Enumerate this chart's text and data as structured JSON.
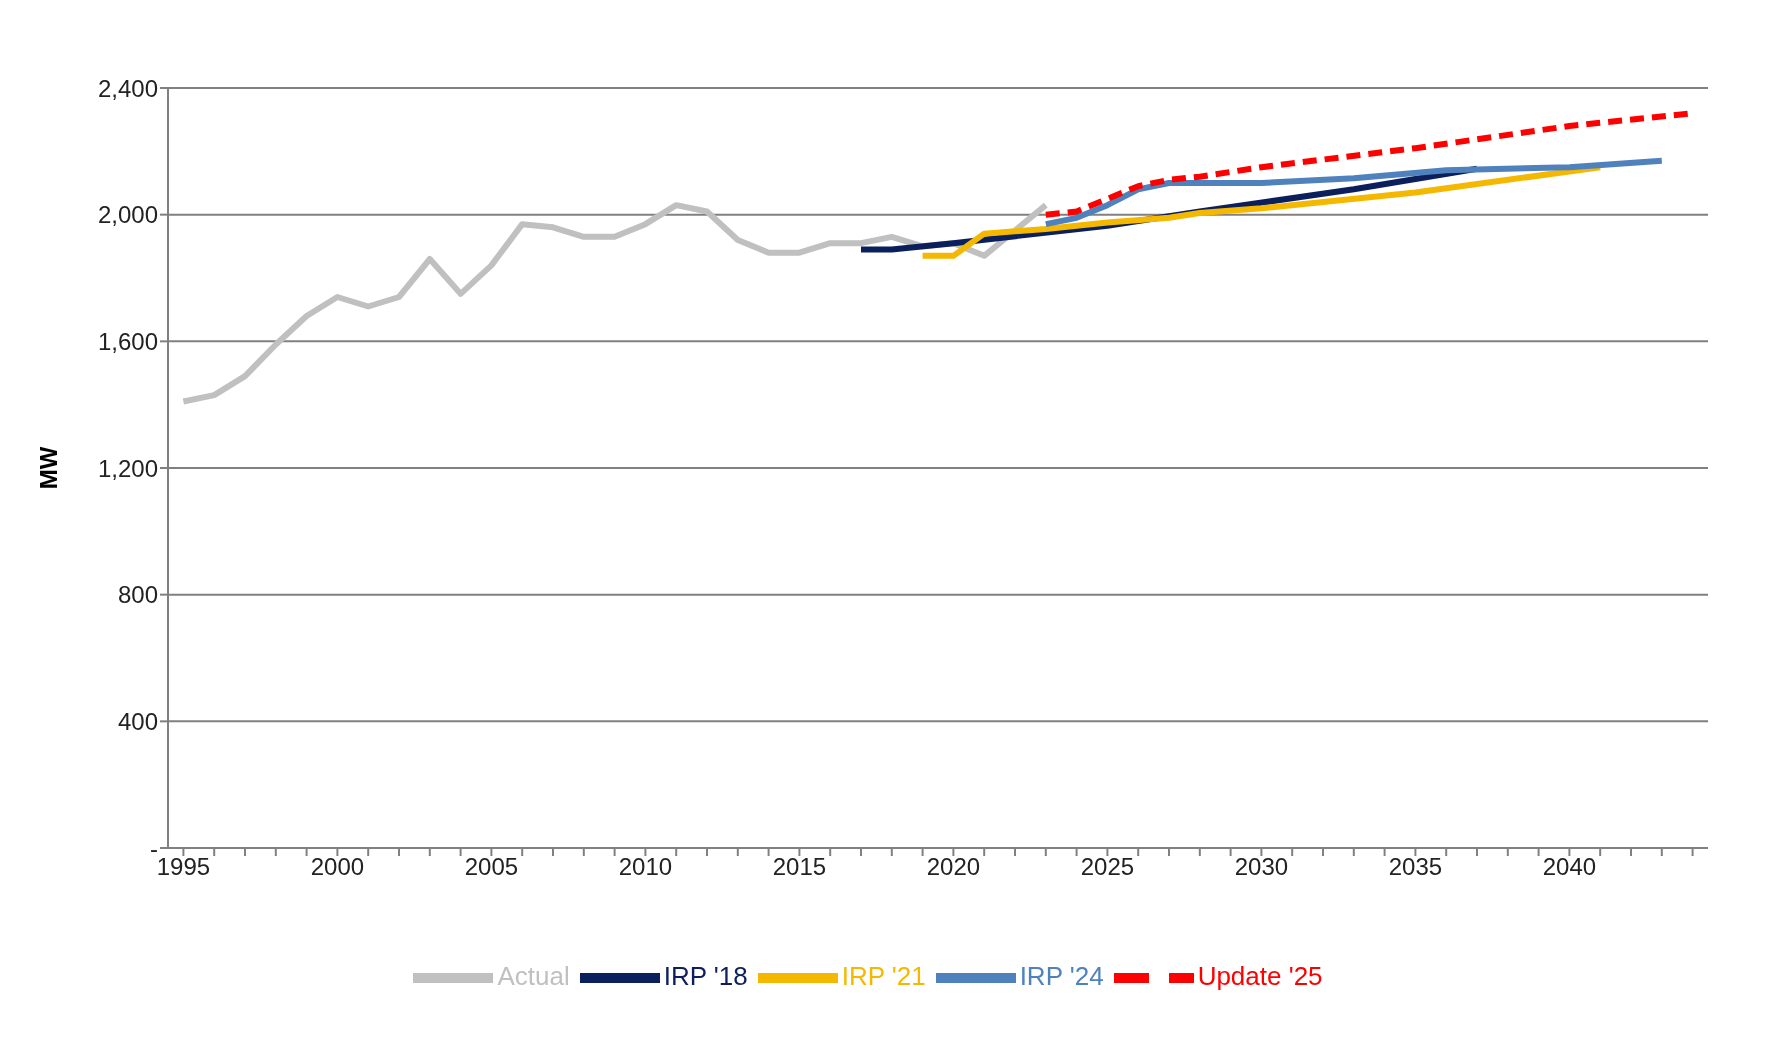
{
  "chart_data": {
    "type": "line",
    "ylabel": "MW",
    "xlim": [
      1994.5,
      2044.5
    ],
    "xticks": [
      1995,
      {
        "value": 1996,
        "label": null
      },
      {
        "value": 1997,
        "label": null
      },
      {
        "value": 1998,
        "label": null
      },
      {
        "value": 1999,
        "label": null
      },
      2000,
      {
        "value": 2001,
        "label": null
      },
      {
        "value": 2002,
        "label": null
      },
      {
        "value": 2003,
        "label": null
      },
      {
        "value": 2004,
        "label": null
      },
      2005,
      {
        "value": 2006,
        "label": null
      },
      {
        "value": 2007,
        "label": null
      },
      {
        "value": 2008,
        "label": null
      },
      {
        "value": 2009,
        "label": null
      },
      2010,
      {
        "value": 2011,
        "label": null
      },
      {
        "value": 2012,
        "label": null
      },
      {
        "value": 2013,
        "label": null
      },
      {
        "value": 2014,
        "label": null
      },
      2015,
      {
        "value": 2016,
        "label": null
      },
      {
        "value": 2017,
        "label": null
      },
      {
        "value": 2018,
        "label": null
      },
      {
        "value": 2019,
        "label": null
      },
      2020,
      {
        "value": 2021,
        "label": null
      },
      {
        "value": 2022,
        "label": null
      },
      {
        "value": 2023,
        "label": null
      },
      {
        "value": 2024,
        "label": null
      },
      2025,
      {
        "value": 2026,
        "label": null
      },
      {
        "value": 2027,
        "label": null
      },
      {
        "value": 2028,
        "label": null
      },
      {
        "value": 2029,
        "label": null
      },
      2030,
      {
        "value": 2031,
        "label": null
      },
      {
        "value": 2032,
        "label": null
      },
      {
        "value": 2033,
        "label": null
      },
      {
        "value": 2034,
        "label": null
      },
      2035,
      {
        "value": 2036,
        "label": null
      },
      {
        "value": 2037,
        "label": null
      },
      {
        "value": 2038,
        "label": null
      },
      {
        "value": 2039,
        "label": null
      },
      2040,
      {
        "value": 2041,
        "label": null
      },
      {
        "value": 2042,
        "label": null
      },
      {
        "value": 2043,
        "label": null
      },
      {
        "value": 2044,
        "label": null
      }
    ],
    "ylim": [
      0,
      2400
    ],
    "yticks": [
      {
        "value": 0,
        "label": "-"
      },
      400,
      800,
      {
        "value": 1200,
        "label": "1,200"
      },
      {
        "value": 1600,
        "label": "1,600"
      },
      {
        "value": 2000,
        "label": "2,000"
      },
      {
        "value": 2400,
        "label": "2,400"
      }
    ],
    "grid": "y",
    "legend": "bottom",
    "marker": "none",
    "series": [
      {
        "name": "Actual",
        "color": "#c0c0c0",
        "x": [
          1995,
          1996,
          1997,
          1998,
          1999,
          2000,
          2001,
          2002,
          2003,
          2004,
          2005,
          2006,
          2007,
          2008,
          2009,
          2010,
          2011,
          2012,
          2013,
          2014,
          2015,
          2016,
          2017,
          2018,
          2019,
          2020,
          2021,
          2022,
          2023
        ],
        "values": [
          1410,
          1430,
          1490,
          1590,
          1680,
          1740,
          1710,
          1740,
          1860,
          1750,
          1840,
          1970,
          1960,
          1930,
          1930,
          1970,
          2030,
          2010,
          1920,
          1880,
          1880,
          1910,
          1910,
          1930,
          1900,
          1910,
          1870,
          1950,
          2030
        ]
      },
      {
        "name": "IRP '18",
        "color": "#0a1f5c",
        "x": [
          2017,
          2018,
          2020,
          2025,
          2028,
          2033,
          2037
        ],
        "values": [
          1890,
          1890,
          1910,
          1965,
          2010,
          2080,
          2145
        ]
      },
      {
        "name": "IRP '21",
        "color": "#f5b800",
        "x": [
          2019,
          2020,
          2021,
          2023,
          2025,
          2027,
          2028,
          2030,
          2035,
          2041
        ],
        "values": [
          1870,
          1870,
          1940,
          1955,
          1975,
          1990,
          2005,
          2020,
          2070,
          2150
        ]
      },
      {
        "name": "IRP '24",
        "color": "#4f81bd",
        "x": [
          2023,
          2024,
          2025,
          2026,
          2027,
          2028,
          2030,
          2033,
          2036,
          2040,
          2043
        ],
        "values": [
          1970,
          1990,
          2030,
          2080,
          2100,
          2100,
          2100,
          2115,
          2140,
          2150,
          2170
        ]
      },
      {
        "name": "Update '25",
        "color": "#ff0000",
        "line_style": "dashed",
        "x": [
          2023,
          2024,
          2025,
          2026,
          2027,
          2028,
          2030,
          2035,
          2040,
          2044
        ],
        "values": [
          2000,
          2010,
          2050,
          2090,
          2110,
          2120,
          2150,
          2210,
          2280,
          2320
        ]
      }
    ]
  }
}
